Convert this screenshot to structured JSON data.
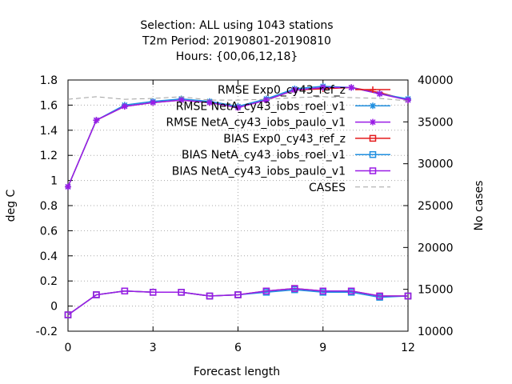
{
  "chart_data": {
    "type": "line",
    "title_lines": [
      "Selection: ALL using  1043 stations",
      "T2m   Period: 20190801-20190810",
      "Hours: {00,06,12,18}"
    ],
    "xlabel": "Forecast length",
    "ylabel": "deg C",
    "y2label": "No cases",
    "xlim": [
      0,
      12
    ],
    "ylim": [
      -0.2,
      1.8
    ],
    "y2lim": [
      10000,
      40000
    ],
    "xticks": [
      "0",
      "3",
      "6",
      "9",
      "12"
    ],
    "yticks": [
      "-0.2",
      "0",
      "0.2",
      "0.4",
      "0.6",
      "0.8",
      "1",
      "1.2",
      "1.4",
      "1.6",
      "1.8"
    ],
    "y2ticks": [
      "10000",
      "15000",
      "20000",
      "25000",
      "30000",
      "35000",
      "40000"
    ],
    "grid": true,
    "legend_position": "top-right",
    "x": [
      0,
      1,
      2,
      3,
      4,
      5,
      6,
      7,
      8,
      9,
      10,
      11,
      12
    ],
    "series": [
      {
        "name": "RMSE Exp0_cy43_ref_z",
        "color": "#e41a1c",
        "marker": "plus",
        "axis": "y",
        "values": [
          0.95,
          1.48,
          1.59,
          1.62,
          1.64,
          1.62,
          1.58,
          1.64,
          1.72,
          1.73,
          1.74,
          1.7,
          1.64
        ]
      },
      {
        "name": "RMSE NetA_cy43_iobs_roel_v1",
        "color": "#1f8fe0",
        "marker": "star",
        "axis": "y",
        "values": [
          0.95,
          1.48,
          1.6,
          1.63,
          1.65,
          1.63,
          1.59,
          1.65,
          1.73,
          1.75,
          1.74,
          1.69,
          1.65
        ]
      },
      {
        "name": "RMSE NetA_cy43_iobs_paulo_v1",
        "color": "#9a1ce6",
        "marker": "star",
        "axis": "y",
        "values": [
          0.95,
          1.48,
          1.59,
          1.62,
          1.64,
          1.62,
          1.58,
          1.64,
          1.72,
          1.74,
          1.74,
          1.69,
          1.64
        ]
      },
      {
        "name": "BIAS Exp0_cy43_ref_z",
        "color": "#e41a1c",
        "marker": "square",
        "axis": "y",
        "values": [
          -0.07,
          0.09,
          0.12,
          0.11,
          0.11,
          0.08,
          0.09,
          0.12,
          0.14,
          0.12,
          0.12,
          0.08,
          0.08
        ]
      },
      {
        "name": "BIAS NetA_cy43_iobs_roel_v1",
        "color": "#1f8fe0",
        "marker": "square",
        "axis": "y",
        "values": [
          -0.07,
          0.09,
          0.12,
          0.11,
          0.11,
          0.08,
          0.09,
          0.11,
          0.13,
          0.11,
          0.11,
          0.07,
          0.08
        ]
      },
      {
        "name": "BIAS NetA_cy43_iobs_paulo_v1",
        "color": "#9a1ce6",
        "marker": "square",
        "axis": "y",
        "values": [
          -0.07,
          0.09,
          0.12,
          0.11,
          0.11,
          0.08,
          0.09,
          0.12,
          0.14,
          0.12,
          0.12,
          0.08,
          0.08
        ]
      },
      {
        "name": "CASES",
        "color": "#a0a0a0",
        "marker": "none",
        "dashed": true,
        "axis": "y2",
        "values": [
          37700,
          38000,
          37700,
          37800,
          38000,
          37600,
          37600,
          37700,
          37900,
          38000,
          37900,
          37800,
          37500
        ]
      }
    ]
  }
}
